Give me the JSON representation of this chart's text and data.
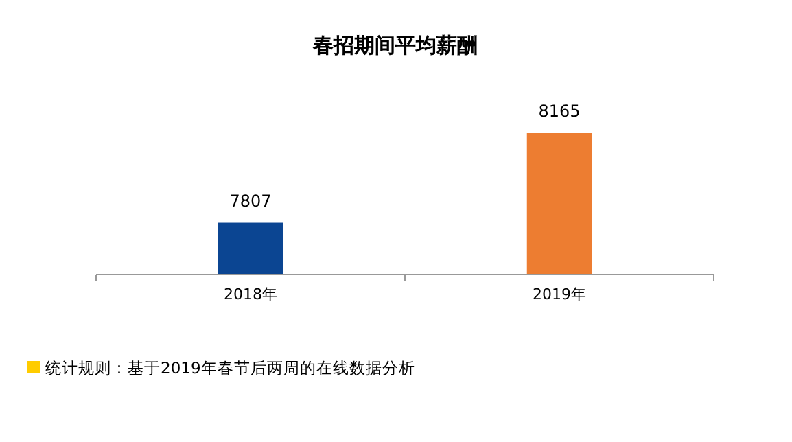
{
  "chart_data": {
    "type": "bar",
    "title": "春招期间平均薪酬",
    "categories": [
      "2018年",
      "2019年"
    ],
    "values": [
      7807,
      8165
    ],
    "colors": [
      "#0b4592",
      "#ed7d31"
    ],
    "ylim": [
      7600,
      8165
    ],
    "data_labels": true,
    "annotations": [
      "统计规则：基于2019年春节后两周的在线数据分析"
    ]
  }
}
